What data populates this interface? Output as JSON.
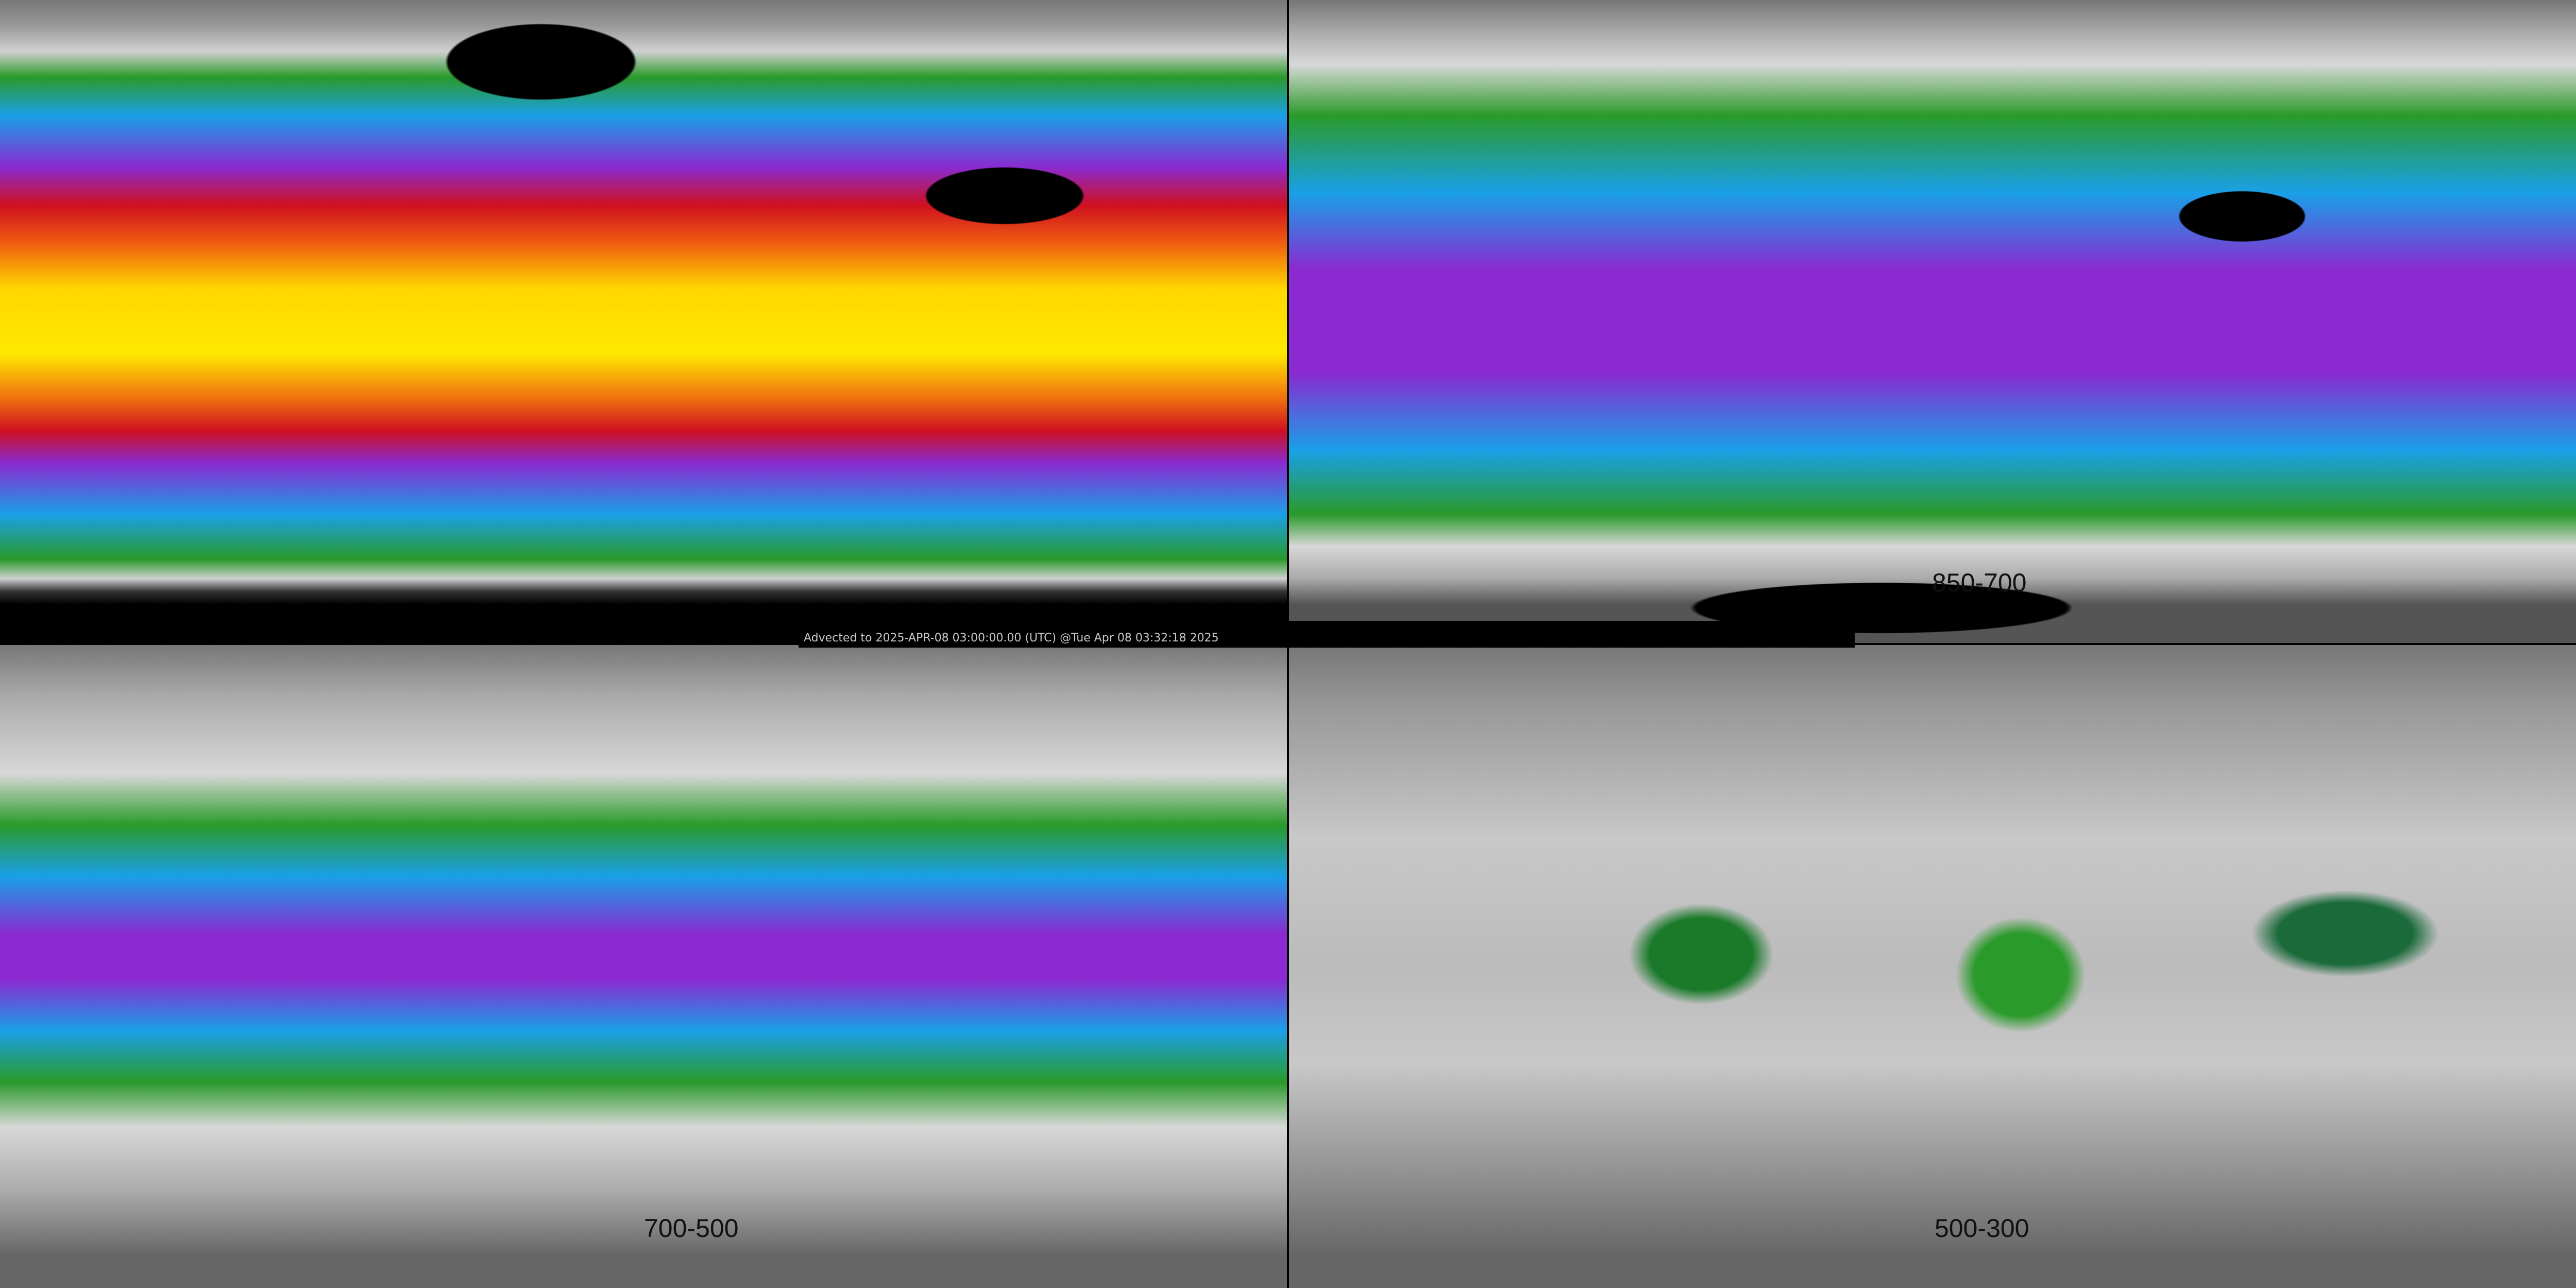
{
  "caption": "Advected to 2025-APR-08 03:00:00.00 (UTC) @Tue Apr 08 03:32:18 2025",
  "panels": [
    {
      "label": ""
    },
    {
      "label": "850-700"
    },
    {
      "label": "700-500"
    },
    {
      "label": "500-300"
    }
  ],
  "colors": {
    "yellow": "#ffd800",
    "orange": "#f06010",
    "red": "#d01020",
    "purple": "#8a2ad0",
    "blue": "#1aa0e8",
    "green": "#2a9a2a",
    "gray": "#c8c8c8"
  }
}
